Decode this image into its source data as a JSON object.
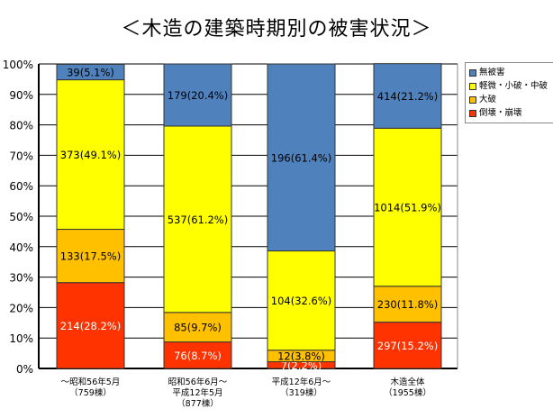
{
  "chart_data": {
    "type": "bar",
    "stacked": true,
    "title": "＜木造の建築時期別の被害状況＞",
    "xlabel": "",
    "ylabel": "",
    "ylim": [
      0,
      100
    ],
    "yticks": [
      "0%",
      "10%",
      "20%",
      "30%",
      "40%",
      "50%",
      "60%",
      "70%",
      "80%",
      "90%",
      "100%"
    ],
    "grid": true,
    "legend_position": "right",
    "categories": [
      [
        "～昭和56年5月",
        "（759棟）"
      ],
      [
        "昭和56年6月～",
        "平成12年5月",
        "（877棟）"
      ],
      [
        "平成12年6月～",
        "（319棟）"
      ],
      [
        "木造全体",
        "（1955棟）"
      ]
    ],
    "series": [
      {
        "name": "倒壊・崩壊",
        "color": "#ff3300",
        "text_color": "#ffffff",
        "values": [
          28.2,
          8.7,
          2.2,
          15.2
        ],
        "labels": [
          "214(28.2%)",
          "76(8.7%)",
          "7(2.2%)",
          "297(15.2%)"
        ]
      },
      {
        "name": "大破",
        "color": "#ffc000",
        "text_color": "#000000",
        "values": [
          17.5,
          9.7,
          3.8,
          11.8
        ],
        "labels": [
          "133(17.5%)",
          "85(9.7%)",
          "12(3.8%)",
          "230(11.8%)"
        ]
      },
      {
        "name": "軽微・小破・中破",
        "color": "#ffff00",
        "text_color": "#000000",
        "values": [
          49.1,
          61.2,
          32.6,
          51.9
        ],
        "labels": [
          "373(49.1%)",
          "537(61.2%)",
          "104(32.6%)",
          "1014(51.9%)"
        ]
      },
      {
        "name": "無被害",
        "color": "#4f81bd",
        "text_color": "#000000",
        "values": [
          5.1,
          20.4,
          61.4,
          21.2
        ],
        "labels": [
          "39(5.1%)",
          "179(20.4%)",
          "196(61.4%)",
          "414(21.2%)"
        ]
      }
    ]
  }
}
